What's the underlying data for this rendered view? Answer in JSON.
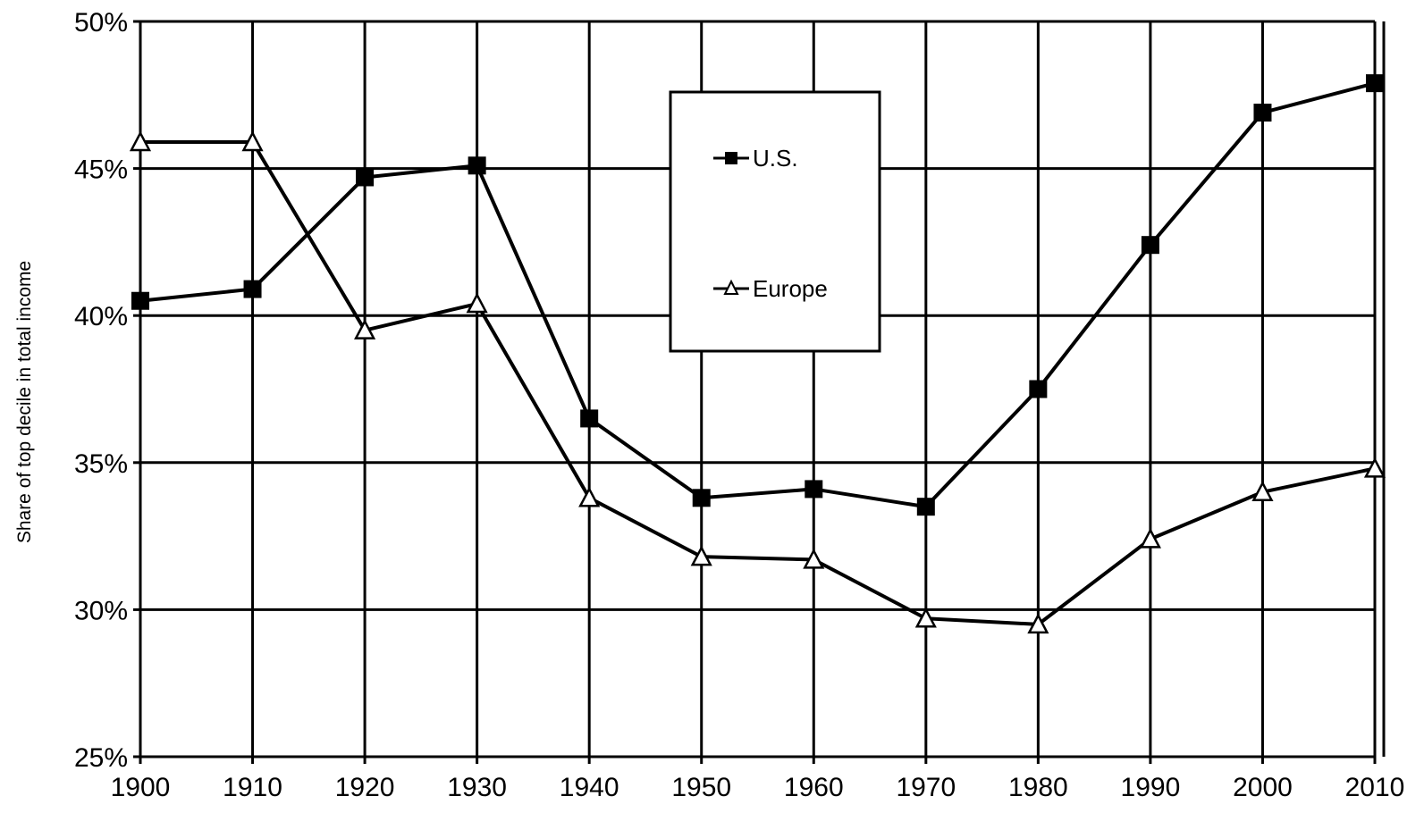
{
  "chart_data": {
    "type": "line",
    "title": "",
    "xlabel": "",
    "ylabel": "Share of top decile in total income",
    "x": [
      1900,
      1910,
      1920,
      1930,
      1940,
      1950,
      1960,
      1970,
      1980,
      1990,
      2000,
      2010
    ],
    "x_tick_labels": [
      "1900",
      "1910",
      "1920",
      "1930",
      "1940",
      "1950",
      "1960",
      "1970",
      "1980",
      "1990",
      "2000",
      "2010"
    ],
    "y_tick_values": [
      25,
      30,
      35,
      40,
      45,
      50
    ],
    "y_tick_labels": [
      "25%",
      "30%",
      "35%",
      "40%",
      "45%",
      "50%"
    ],
    "ylim": [
      25,
      50
    ],
    "xlim": [
      1900,
      2010
    ],
    "grid": true,
    "legend_position": "top-center",
    "series": [
      {
        "name": "U.S.",
        "marker": "filled-square",
        "color": "#000000",
        "values": [
          40.5,
          40.9,
          44.7,
          45.1,
          36.5,
          33.8,
          34.1,
          33.5,
          37.5,
          42.4,
          46.9,
          47.9
        ]
      },
      {
        "name": "Europe",
        "marker": "open-triangle",
        "color": "#000000",
        "values": [
          45.9,
          45.9,
          39.5,
          40.4,
          33.8,
          31.8,
          31.7,
          29.7,
          29.5,
          32.4,
          34.0,
          34.8
        ]
      }
    ]
  }
}
